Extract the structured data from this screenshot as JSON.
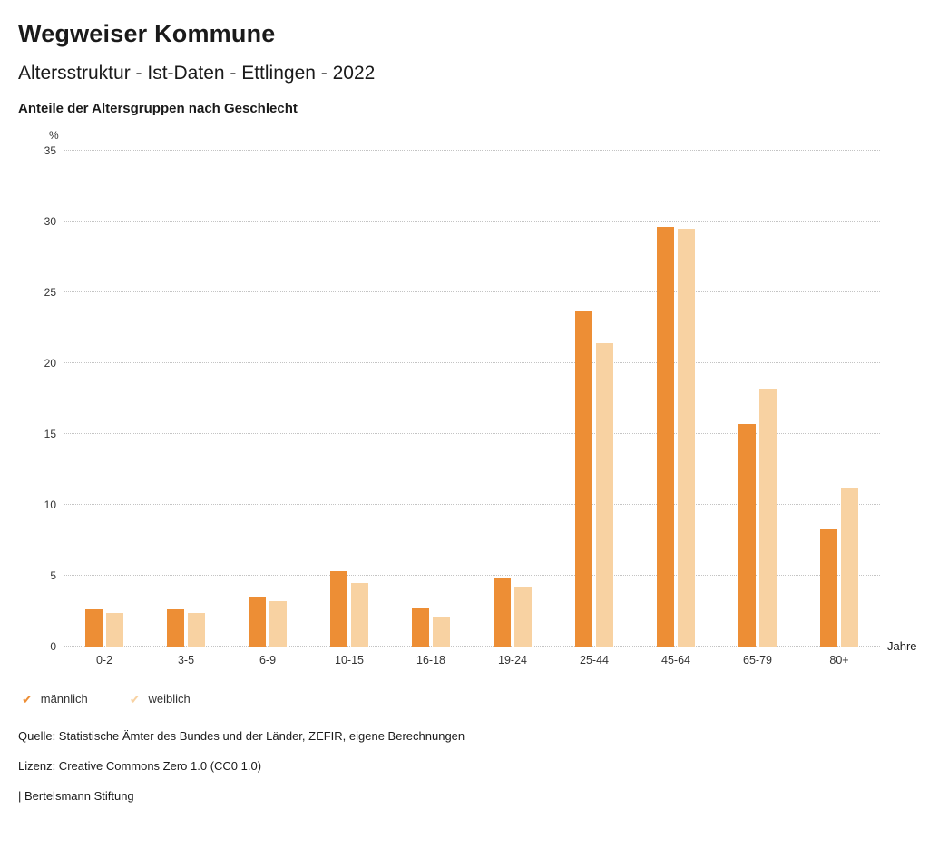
{
  "header": {
    "title": "Wegweiser Kommune",
    "subtitle": "Altersstruktur - Ist-Daten - Ettlingen - 2022",
    "chart_heading": "Anteile der Altersgruppen nach Geschlecht"
  },
  "chart_data": {
    "type": "bar",
    "title": "Anteile der Altersgruppen nach Geschlecht",
    "categories": [
      "0-2",
      "3-5",
      "6-9",
      "10-15",
      "16-18",
      "19-24",
      "25-44",
      "45-64",
      "65-79",
      "80+"
    ],
    "series": [
      {
        "name": "männlich",
        "color": "#ED8E35",
        "values": [
          2.6,
          2.6,
          3.5,
          5.3,
          2.7,
          4.9,
          23.7,
          29.6,
          15.7,
          8.3
        ]
      },
      {
        "name": "weiblich",
        "color": "#F8D2A2",
        "values": [
          2.4,
          2.4,
          3.2,
          4.5,
          2.1,
          4.2,
          21.4,
          29.5,
          18.2,
          11.2
        ]
      }
    ],
    "ylabel": "%",
    "xlabel": "Jahre",
    "ylim": [
      0,
      35
    ],
    "ytick_step": 5,
    "grid": true,
    "legend_position": "bottom",
    "legend_marker": "✔"
  },
  "footer": {
    "source": "Quelle: Statistische Ämter des Bundes und der Länder, ZEFIR, eigene Berechnungen",
    "license": "Lizenz: Creative Commons Zero 1.0 (CC0 1.0)",
    "attribution": "| Bertelsmann Stiftung"
  }
}
